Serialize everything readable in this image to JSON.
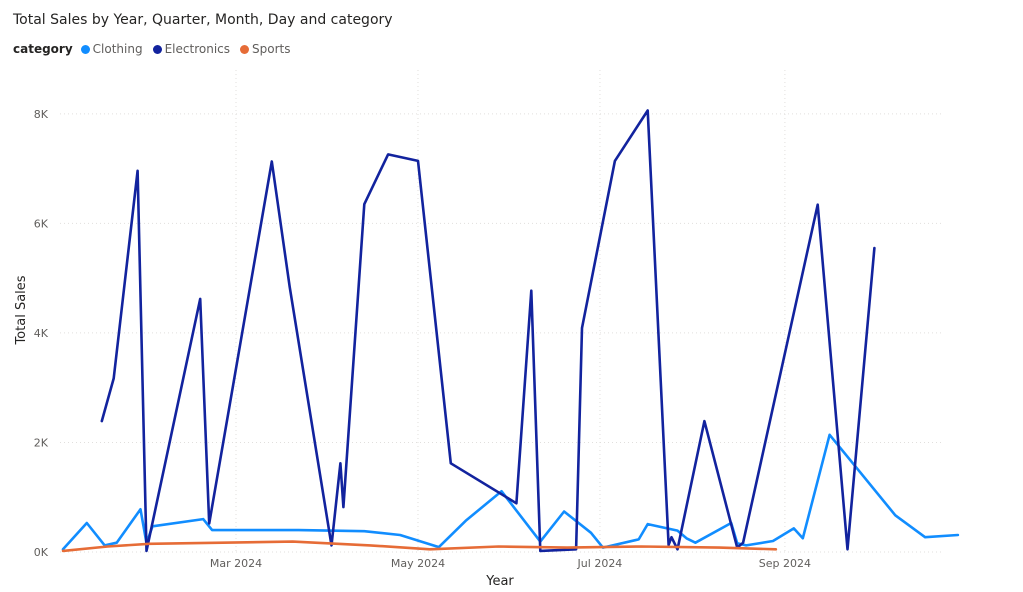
{
  "chart_data": {
    "type": "line",
    "title": "Total Sales by Year, Quarter, Month, Day and category",
    "legend_title": "category",
    "legend_placement": "top-left",
    "xlabel": "Year",
    "ylabel": "Total Sales",
    "xlim": [
      "2024-01-02",
      "2024-10-24"
    ],
    "ylim": [
      0,
      8800
    ],
    "grid": true,
    "y_ticks": [
      {
        "value": 0,
        "label": "0K"
      },
      {
        "value": 2000,
        "label": "2K"
      },
      {
        "value": 4000,
        "label": "4K"
      },
      {
        "value": 6000,
        "label": "6K"
      },
      {
        "value": 8000,
        "label": "8K"
      }
    ],
    "x_ticks": [
      {
        "date": "2024-03-01",
        "label": "Mar 2024"
      },
      {
        "date": "2024-05-01",
        "label": "May 2024"
      },
      {
        "date": "2024-07-01",
        "label": "Jul 2024"
      },
      {
        "date": "2024-09-01",
        "label": "Sep 2024"
      }
    ],
    "series": [
      {
        "name": "Clothing",
        "color": "#118DFF",
        "points": [
          [
            "2024-01-03",
            50
          ],
          [
            "2024-01-11",
            530
          ],
          [
            "2024-01-17",
            120
          ],
          [
            "2024-01-21",
            170
          ],
          [
            "2024-01-29",
            780
          ],
          [
            "2024-01-31",
            160
          ],
          [
            "2024-02-02",
            470
          ],
          [
            "2024-02-19",
            600
          ],
          [
            "2024-02-22",
            400
          ],
          [
            "2024-03-22",
            400
          ],
          [
            "2024-04-13",
            380
          ],
          [
            "2024-04-25",
            310
          ],
          [
            "2024-05-08",
            90
          ],
          [
            "2024-05-17",
            570
          ],
          [
            "2024-05-29",
            1110
          ],
          [
            "2024-06-11",
            190
          ],
          [
            "2024-06-19",
            740
          ],
          [
            "2024-06-28",
            350
          ],
          [
            "2024-07-02",
            80
          ],
          [
            "2024-07-14",
            230
          ],
          [
            "2024-07-17",
            510
          ],
          [
            "2024-07-27",
            390
          ],
          [
            "2024-07-30",
            250
          ],
          [
            "2024-08-02",
            170
          ],
          [
            "2024-08-14",
            530
          ],
          [
            "2024-08-16",
            160
          ],
          [
            "2024-08-19",
            120
          ],
          [
            "2024-08-28",
            200
          ],
          [
            "2024-09-04",
            430
          ],
          [
            "2024-09-07",
            250
          ],
          [
            "2024-09-16",
            2140
          ],
          [
            "2024-10-08",
            670
          ],
          [
            "2024-10-18",
            270
          ],
          [
            "2024-10-29",
            310
          ]
        ]
      },
      {
        "name": "Electronics",
        "color": "#12239E",
        "points": [
          [
            "2024-01-16",
            2390
          ],
          [
            "2024-01-20",
            3170
          ],
          [
            "2024-01-28",
            6960
          ],
          [
            "2024-01-31",
            20
          ],
          [
            "2024-02-18",
            4620
          ],
          [
            "2024-02-21",
            520
          ],
          [
            "2024-03-13",
            7130
          ],
          [
            "2024-03-19",
            4840
          ],
          [
            "2024-04-02",
            120
          ],
          [
            "2024-04-05",
            1620
          ],
          [
            "2024-04-06",
            820
          ],
          [
            "2024-04-13",
            6350
          ],
          [
            "2024-04-21",
            7260
          ],
          [
            "2024-05-01",
            7140
          ],
          [
            "2024-05-12",
            1620
          ],
          [
            "2024-06-03",
            890
          ],
          [
            "2024-06-08",
            4770
          ],
          [
            "2024-06-11",
            20
          ],
          [
            "2024-06-23",
            50
          ],
          [
            "2024-06-25",
            4090
          ],
          [
            "2024-07-06",
            7140
          ],
          [
            "2024-07-17",
            8060
          ],
          [
            "2024-07-24",
            130
          ],
          [
            "2024-07-25",
            270
          ],
          [
            "2024-07-27",
            50
          ],
          [
            "2024-08-05",
            2390
          ],
          [
            "2024-08-16",
            80
          ],
          [
            "2024-08-18",
            170
          ],
          [
            "2024-09-12",
            6340
          ],
          [
            "2024-09-22",
            50
          ],
          [
            "2024-10-01",
            5550
          ]
        ]
      },
      {
        "name": "Sports",
        "color": "#E66C37",
        "points": [
          [
            "2024-01-03",
            20
          ],
          [
            "2024-01-18",
            100
          ],
          [
            "2024-02-01",
            150
          ],
          [
            "2024-03-20",
            190
          ],
          [
            "2024-04-15",
            120
          ],
          [
            "2024-05-05",
            50
          ],
          [
            "2024-05-28",
            100
          ],
          [
            "2024-06-20",
            80
          ],
          [
            "2024-07-15",
            100
          ],
          [
            "2024-08-10",
            80
          ],
          [
            "2024-08-29",
            50
          ]
        ]
      }
    ]
  }
}
